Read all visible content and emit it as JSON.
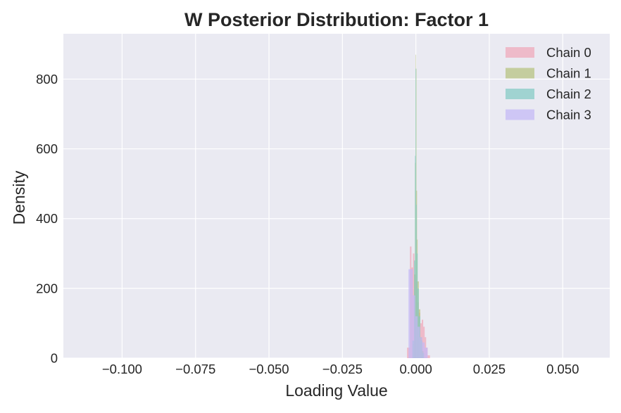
{
  "chart_data": {
    "type": "histogram",
    "title": "W Posterior Distribution: Factor 1",
    "xlabel": "Loading Value",
    "ylabel": "Density",
    "xlim": [
      -0.12,
      0.066
    ],
    "ylim": [
      0,
      930
    ],
    "x_ticks": [
      -0.1,
      -0.075,
      -0.05,
      -0.025,
      0.0,
      0.025,
      0.05
    ],
    "x_tick_labels": [
      "−0.100",
      "−0.075",
      "−0.050",
      "−0.025",
      "0.000",
      "0.025",
      "0.050"
    ],
    "y_ticks": [
      0,
      200,
      400,
      600,
      800
    ],
    "y_tick_labels": [
      "0",
      "200",
      "400",
      "600",
      "800"
    ],
    "grid": true,
    "legend_position": "top-right",
    "colors": {
      "background": "#eaeaf2",
      "grid": "#ffffff"
    },
    "series": [
      {
        "name": "Chain 0",
        "color": "#f0a8b8",
        "bins": [
          [
            -0.003,
            -0.002,
            30
          ],
          [
            -0.002,
            -0.0015,
            320
          ],
          [
            -0.0015,
            -0.001,
            260
          ],
          [
            -0.001,
            -0.0005,
            300
          ],
          [
            -0.0005,
            0.0,
            240
          ],
          [
            0.0,
            0.0005,
            220
          ],
          [
            0.0005,
            0.001,
            160
          ],
          [
            0.001,
            0.0015,
            130
          ],
          [
            0.0015,
            0.002,
            100
          ],
          [
            0.002,
            0.0025,
            110
          ],
          [
            0.0025,
            0.003,
            90
          ],
          [
            0.003,
            0.0035,
            60
          ],
          [
            0.0035,
            0.004,
            30
          ],
          [
            0.004,
            0.0048,
            8
          ]
        ]
      },
      {
        "name": "Chain 1",
        "color": "#b5c27d",
        "bins": [
          [
            -0.001,
            -0.0006,
            40
          ],
          [
            -0.0006,
            -0.0003,
            240
          ],
          [
            -0.0003,
            -0.0001,
            560
          ],
          [
            -0.0001,
            0.0,
            870
          ],
          [
            0.0,
            0.0002,
            830
          ],
          [
            0.0002,
            0.0004,
            480
          ],
          [
            0.0004,
            0.0006,
            340
          ],
          [
            0.0006,
            0.001,
            220
          ],
          [
            0.001,
            0.0015,
            140
          ],
          [
            0.0015,
            0.002,
            60
          ],
          [
            0.002,
            0.0026,
            20
          ]
        ]
      },
      {
        "name": "Chain 2",
        "color": "#84cbc3",
        "bins": [
          [
            -0.0012,
            -0.0006,
            50
          ],
          [
            -0.0006,
            -0.0003,
            280
          ],
          [
            -0.0003,
            -0.0001,
            580
          ],
          [
            -0.0001,
            0.0001,
            830
          ],
          [
            0.0001,
            0.0003,
            440
          ],
          [
            0.0003,
            0.0006,
            300
          ],
          [
            0.0006,
            0.001,
            200
          ],
          [
            0.001,
            0.0015,
            120
          ],
          [
            0.0015,
            0.0022,
            50
          ],
          [
            0.0022,
            0.0028,
            15
          ]
        ]
      },
      {
        "name": "Chain 3",
        "color": "#c3b8f5",
        "bins": [
          [
            -0.0025,
            -0.0018,
            255
          ],
          [
            -0.0018,
            -0.001,
            255
          ],
          [
            -0.001,
            -0.0002,
            180
          ],
          [
            -0.0002,
            0.0006,
            120
          ],
          [
            0.0006,
            0.0014,
            90
          ],
          [
            0.0014,
            0.0022,
            60
          ],
          [
            0.0022,
            0.003,
            45
          ],
          [
            0.003,
            0.004,
            30
          ]
        ]
      }
    ]
  }
}
